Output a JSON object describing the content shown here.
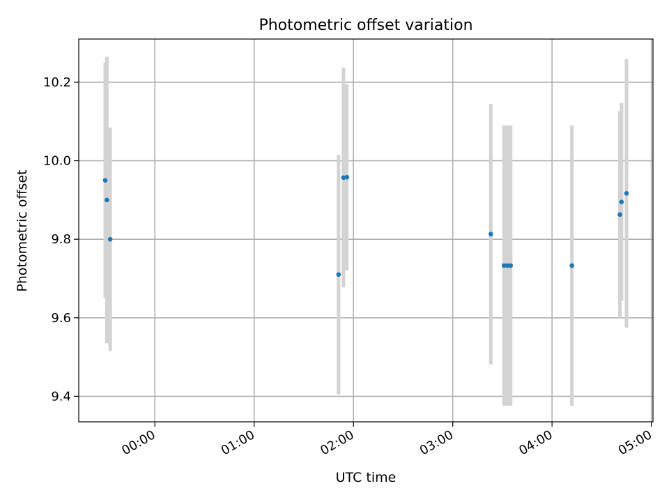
{
  "chart_data": {
    "type": "scatter",
    "title": "Photometric offset variation",
    "xlabel": "UTC time",
    "ylabel": "Photometric offset",
    "x_ticks": [
      "00:00",
      "01:00",
      "02:00",
      "03:00",
      "04:00",
      "05:00"
    ],
    "y_ticks": [
      "9.4",
      "9.6",
      "9.8",
      "10.0",
      "10.2"
    ],
    "xlim": [
      "-00:46",
      "05:01"
    ],
    "ylim": [
      9.335,
      10.31
    ],
    "grid": true,
    "marker_color": "#1f77b4",
    "errorbar_color": "#d3d3d3",
    "points": [
      {
        "t": "-00:30",
        "y": 9.95,
        "err": 0.3
      },
      {
        "t": "-00:29",
        "y": 9.9,
        "err": 0.365
      },
      {
        "t": "-00:27",
        "y": 9.8,
        "err": 0.285
      },
      {
        "t": "01:51",
        "y": 9.71,
        "err": 0.305
      },
      {
        "t": "01:54",
        "y": 9.957,
        "err": 0.28
      },
      {
        "t": "01:56",
        "y": 9.958,
        "err": 0.237
      },
      {
        "t": "03:23",
        "y": 9.813,
        "err": 0.332
      },
      {
        "t": "03:31",
        "y": 9.733,
        "err": 0.357
      },
      {
        "t": "03:33",
        "y": 9.733,
        "err": 0.357
      },
      {
        "t": "03:35",
        "y": 9.733,
        "err": 0.357
      },
      {
        "t": "04:12",
        "y": 9.733,
        "err": 0.357
      },
      {
        "t": "04:41",
        "y": 9.863,
        "err": 0.263
      },
      {
        "t": "04:42",
        "y": 9.895,
        "err": 0.252
      },
      {
        "t": "04:45",
        "y": 9.917,
        "err": 0.342
      }
    ]
  }
}
